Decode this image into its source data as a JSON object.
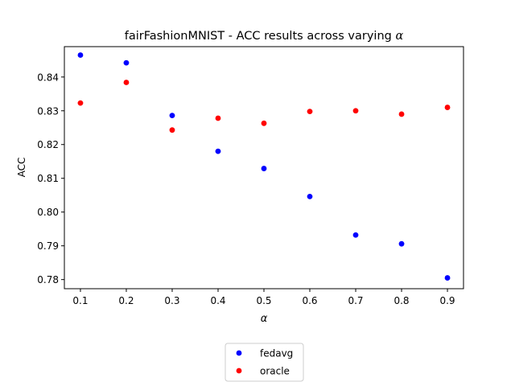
{
  "chart_data": {
    "type": "scatter",
    "title_prefix": "fairFashionMNIST - ACC results across varying ",
    "title_symbol": "α",
    "xlabel": "α",
    "ylabel": "ACC",
    "xlim": [
      0.065,
      0.935
    ],
    "ylim": [
      0.7773,
      0.849
    ],
    "x": [
      0.1,
      0.2,
      0.3,
      0.4,
      0.5,
      0.6,
      0.7,
      0.8,
      0.9
    ],
    "xticks": [
      "0.1",
      "0.2",
      "0.3",
      "0.4",
      "0.5",
      "0.6",
      "0.7",
      "0.8",
      "0.9"
    ],
    "yticks": [
      "0.78",
      "0.79",
      "0.80",
      "0.81",
      "0.82",
      "0.83",
      "0.84"
    ],
    "grid": false,
    "legend_position": "bottom-center",
    "series": [
      {
        "name": "fedavg",
        "color": "#0000ff",
        "values": [
          0.8465,
          0.8442,
          0.8286,
          0.818,
          0.8129,
          0.8046,
          0.7932,
          0.7906,
          0.7805
        ]
      },
      {
        "name": "oracle",
        "color": "#ff0000",
        "values": [
          0.8323,
          0.8384,
          0.8243,
          0.8278,
          0.8263,
          0.8298,
          0.83,
          0.829,
          0.831
        ]
      }
    ]
  }
}
